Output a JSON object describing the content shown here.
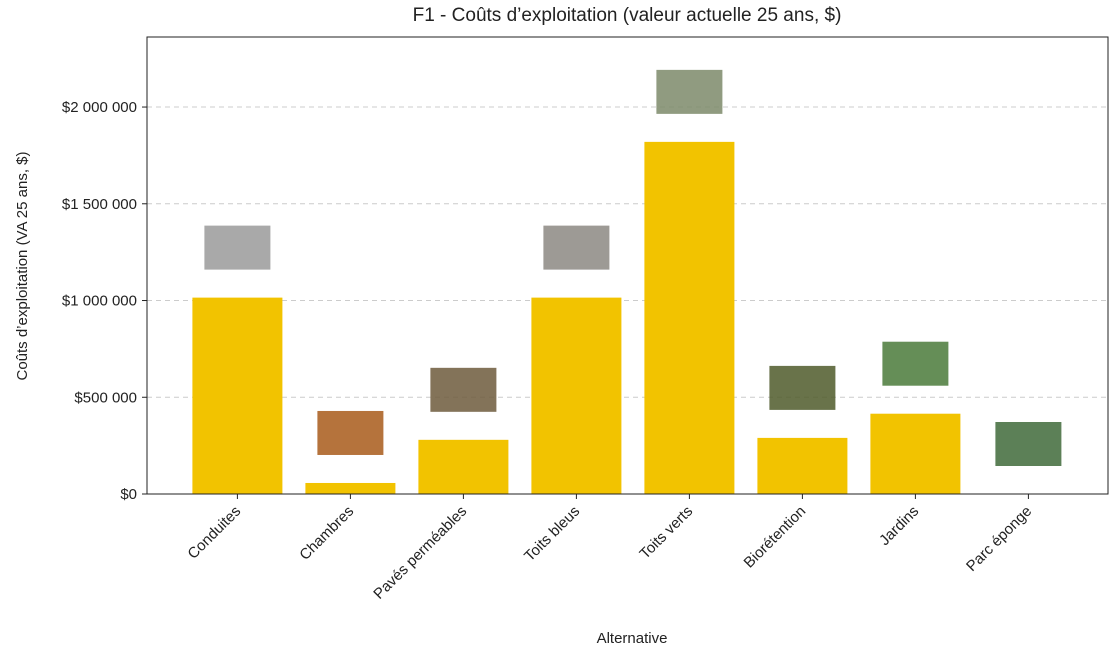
{
  "chart_data": {
    "type": "bar",
    "title": "F1 - Coûts d’exploitation (valeur actuelle 25 ans, $)",
    "x_label": "Alternative",
    "y_label": "Coûts d’exploitation (VA 25 ans, $)",
    "categories": [
      "Conduites",
      "Chambres",
      "Pavés perméables",
      "Toits bleus",
      "Toits verts",
      "Biorétention",
      "Jardins",
      "Parc éponge"
    ],
    "values": [
      1015000,
      57000,
      280000,
      1015000,
      1820000,
      290000,
      415000,
      0
    ],
    "color": "#f2c300",
    "ylim": [
      0,
      2362000
    ],
    "yticks": [
      {
        "value": 0,
        "label": "$0"
      },
      {
        "value": 500000,
        "label": "$500 000"
      },
      {
        "value": 1000000,
        "label": "$1 000 000"
      },
      {
        "value": 1500000,
        "label": "$1 500 000"
      },
      {
        "value": 2000000,
        "label": "$2 000 000"
      }
    ],
    "grid": true
  }
}
